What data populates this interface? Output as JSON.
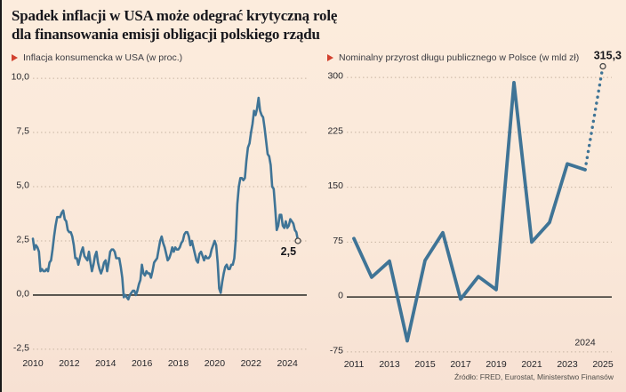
{
  "page": {
    "title_line1": "Spadek inflacji w USA może odegrać krytyczną rolę",
    "title_line2": "dla finansowania emisji obligacji polskiego rządu",
    "source": "Źródło: FRED, Eurostat, Ministerstwo Finansów"
  },
  "colors": {
    "background": "#fbebdc",
    "line": "#3f7496",
    "legend_marker": "#d2402e",
    "grid": "#c7b5a3",
    "zero_line": "#4d4b45",
    "text": "#26262b"
  },
  "chart_data": [
    {
      "type": "line",
      "title": "Inflacja konsumencka w USA (w proc.)",
      "x_start": 2010.0,
      "x_interval": 0.083333,
      "values": [
        2.6,
        2.1,
        2.3,
        2.2,
        2.0,
        1.1,
        1.2,
        1.1,
        1.1,
        1.2,
        1.1,
        1.5,
        1.6,
        2.1,
        2.7,
        3.2,
        3.6,
        3.6,
        3.6,
        3.8,
        3.9,
        3.5,
        3.4,
        3.0,
        2.9,
        2.9,
        2.7,
        2.3,
        1.7,
        1.7,
        1.4,
        1.7,
        2.0,
        2.2,
        1.8,
        1.7,
        1.6,
        2.0,
        1.5,
        1.1,
        1.4,
        1.8,
        2.0,
        1.5,
        1.2,
        1.0,
        1.2,
        1.5,
        1.6,
        1.1,
        1.5,
        2.0,
        2.1,
        2.1,
        2.0,
        1.7,
        1.7,
        1.7,
        1.3,
        0.8,
        -0.1,
        0.0,
        -0.1,
        -0.2,
        0.0,
        0.1,
        0.2,
        0.2,
        0.0,
        0.2,
        0.5,
        0.7,
        1.4,
        1.0,
        0.9,
        1.1,
        1.0,
        1.0,
        0.8,
        1.1,
        1.5,
        1.6,
        1.7,
        2.1,
        2.5,
        2.7,
        2.4,
        2.2,
        1.9,
        1.6,
        1.7,
        1.9,
        2.2,
        2.0,
        2.2,
        2.1,
        2.1,
        2.2,
        2.4,
        2.5,
        2.8,
        2.9,
        2.9,
        2.7,
        2.3,
        2.5,
        2.2,
        1.9,
        1.6,
        1.5,
        1.9,
        2.0,
        1.8,
        1.6,
        1.8,
        1.7,
        1.7,
        1.8,
        2.1,
        2.3,
        2.5,
        2.3,
        1.5,
        0.3,
        0.1,
        0.6,
        1.0,
        1.3,
        1.4,
        1.2,
        1.2,
        1.4,
        1.4,
        1.7,
        2.6,
        4.2,
        5.0,
        5.4,
        5.4,
        5.3,
        5.4,
        6.2,
        6.8,
        7.0,
        7.5,
        7.9,
        8.5,
        8.3,
        8.6,
        9.1,
        8.5,
        8.3,
        8.2,
        7.7,
        7.1,
        6.5,
        6.4,
        6.0,
        5.0,
        4.9,
        4.0,
        3.0,
        3.2,
        3.7,
        3.7,
        3.2,
        3.1,
        3.4,
        3.1,
        3.2,
        3.5,
        3.4,
        3.3,
        3.0,
        2.9,
        2.5
      ],
      "xlim": [
        2010.0,
        2025.07
      ],
      "ylim": [
        -2.75,
        10.25
      ],
      "yticks": [
        {
          "v": 10,
          "label": "10,0"
        },
        {
          "v": 7.5,
          "label": "7,5"
        },
        {
          "v": 5,
          "label": "5,0"
        },
        {
          "v": 2.5,
          "label": "2,5"
        },
        {
          "v": 0,
          "label": "0,0"
        },
        {
          "v": -2.5,
          "label": "-2,5"
        }
      ],
      "xticks": [
        {
          "v": 2010,
          "label": "2010"
        },
        {
          "v": 2012,
          "label": "2012"
        },
        {
          "v": 2014,
          "label": "2014"
        },
        {
          "v": 2016,
          "label": "2016"
        },
        {
          "v": 2018,
          "label": "2018"
        },
        {
          "v": 2020,
          "label": "2020"
        },
        {
          "v": 2022,
          "label": "2022"
        },
        {
          "v": 2024,
          "label": "2024"
        }
      ],
      "zero_line": true,
      "end_label": "2,5",
      "end_label_position": "below-left"
    },
    {
      "type": "line",
      "title": "Nominalny przyrost długu publicznego w Polsce (w mld zł)",
      "x": [
        2011,
        2012,
        2013,
        2014,
        2015,
        2016,
        2017,
        2018,
        2019,
        2020,
        2021,
        2022,
        2023,
        2024
      ],
      "values": [
        80,
        27,
        49,
        -60,
        50,
        88,
        -3,
        28,
        10,
        293,
        75,
        102,
        182,
        174
      ],
      "projection": {
        "x": [
          2024,
          2025
        ],
        "values": [
          174,
          315.3
        ]
      },
      "xlim": [
        2010.6,
        2025.5
      ],
      "ylim": [
        -80,
        318.4
      ],
      "yticks": [
        {
          "v": 300,
          "label": "300"
        },
        {
          "v": 225,
          "label": "225"
        },
        {
          "v": 150,
          "label": "150"
        },
        {
          "v": 75,
          "label": "75"
        },
        {
          "v": 0,
          "label": "0"
        },
        {
          "v": -75,
          "label": "-75"
        }
      ],
      "xticks": [
        {
          "v": 2011,
          "label": "2011"
        },
        {
          "v": 2013,
          "label": "2013"
        },
        {
          "v": 2015,
          "label": "2015"
        },
        {
          "v": 2017,
          "label": "2017"
        },
        {
          "v": 2019,
          "label": "2019"
        },
        {
          "v": 2021,
          "label": "2021"
        },
        {
          "v": 2023,
          "label": "2023"
        },
        {
          "v": 2025,
          "label": "2025"
        }
      ],
      "zero_line": true,
      "end_label": "315,3",
      "end_label_position": "above-right",
      "annotation": {
        "text": "2024",
        "x": 2024,
        "v": -66
      }
    }
  ]
}
